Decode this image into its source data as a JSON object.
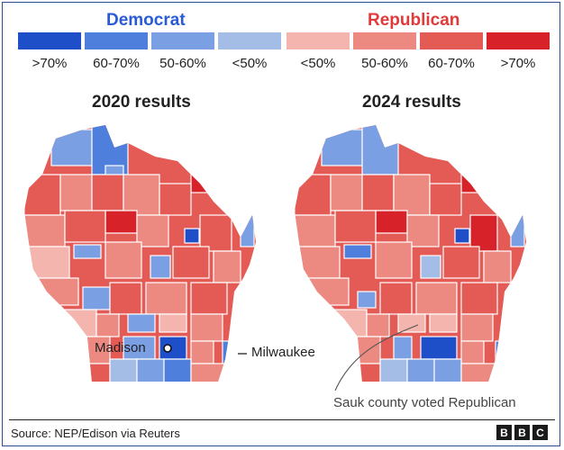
{
  "legend": {
    "democrat_title": "Democrat",
    "republican_title": "Republican",
    "democrat": [
      {
        "label": ">70%",
        "color": "#1e4fc9"
      },
      {
        "label": "60-70%",
        "color": "#4f7fdc"
      },
      {
        "label": "50-60%",
        "color": "#7a9fe2"
      },
      {
        "label": "<50%",
        "color": "#a4bde7"
      }
    ],
    "republican": [
      {
        "label": "<50%",
        "color": "#f3b5ad"
      },
      {
        "label": "50-60%",
        "color": "#ec8a82"
      },
      {
        "label": "60-70%",
        "color": "#e45a55"
      },
      {
        "label": ">70%",
        "color": "#d8222a"
      }
    ]
  },
  "maps": {
    "left_title": "2020 results",
    "right_title": "2024 results"
  },
  "annotations": {
    "madison": "Madison",
    "milwaukee": "Milwaukee",
    "sauk": "Sauk county voted Republican"
  },
  "footer": {
    "source": "Source: NEP/Edison via Reuters",
    "logo_letters": [
      "B",
      "B",
      "C"
    ]
  }
}
